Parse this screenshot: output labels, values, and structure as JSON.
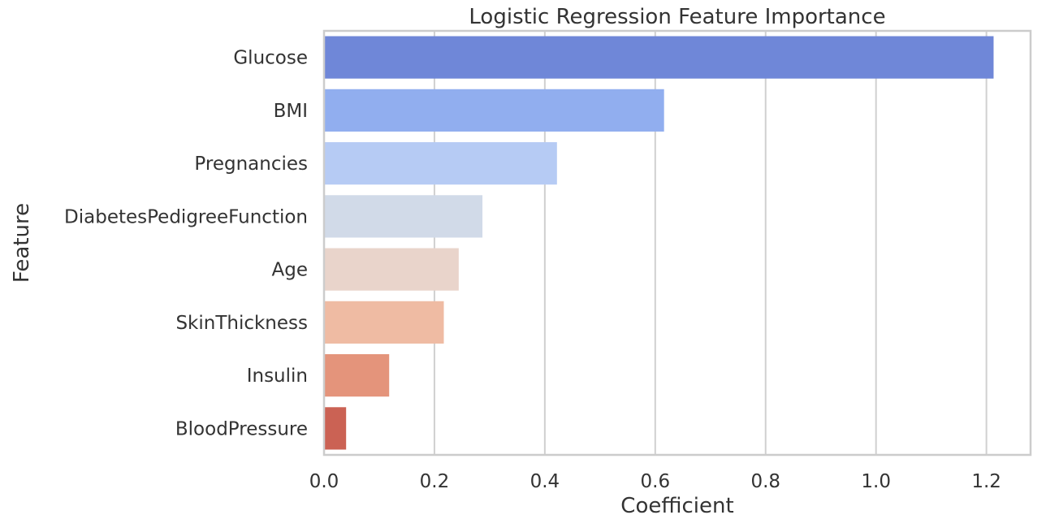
{
  "chart_data": {
    "type": "bar",
    "orientation": "horizontal",
    "title": "Logistic Regression Feature Importance",
    "xlabel": "Coefficient",
    "ylabel": "Feature",
    "categories": [
      "Glucose",
      "BMI",
      "Pregnancies",
      "DiabetesPedigreeFunction",
      "Age",
      "SkinThickness",
      "Insulin",
      "BloodPressure"
    ],
    "values": [
      1.213,
      0.616,
      0.422,
      0.287,
      0.244,
      0.217,
      0.118,
      0.04
    ],
    "colors": [
      "#6f87d8",
      "#91aeef",
      "#b6cbf4",
      "#d1dae8",
      "#e9d4cb",
      "#efbba3",
      "#e4947b",
      "#cb6254"
    ],
    "xlim": [
      0,
      1.28
    ],
    "xticks": [
      0.0,
      0.2,
      0.4,
      0.6,
      0.8,
      1.0,
      1.2
    ],
    "xtick_labels": [
      "0.0",
      "0.2",
      "0.4",
      "0.6",
      "0.8",
      "1.0",
      "1.2"
    ],
    "grid": true,
    "legend": "none"
  }
}
